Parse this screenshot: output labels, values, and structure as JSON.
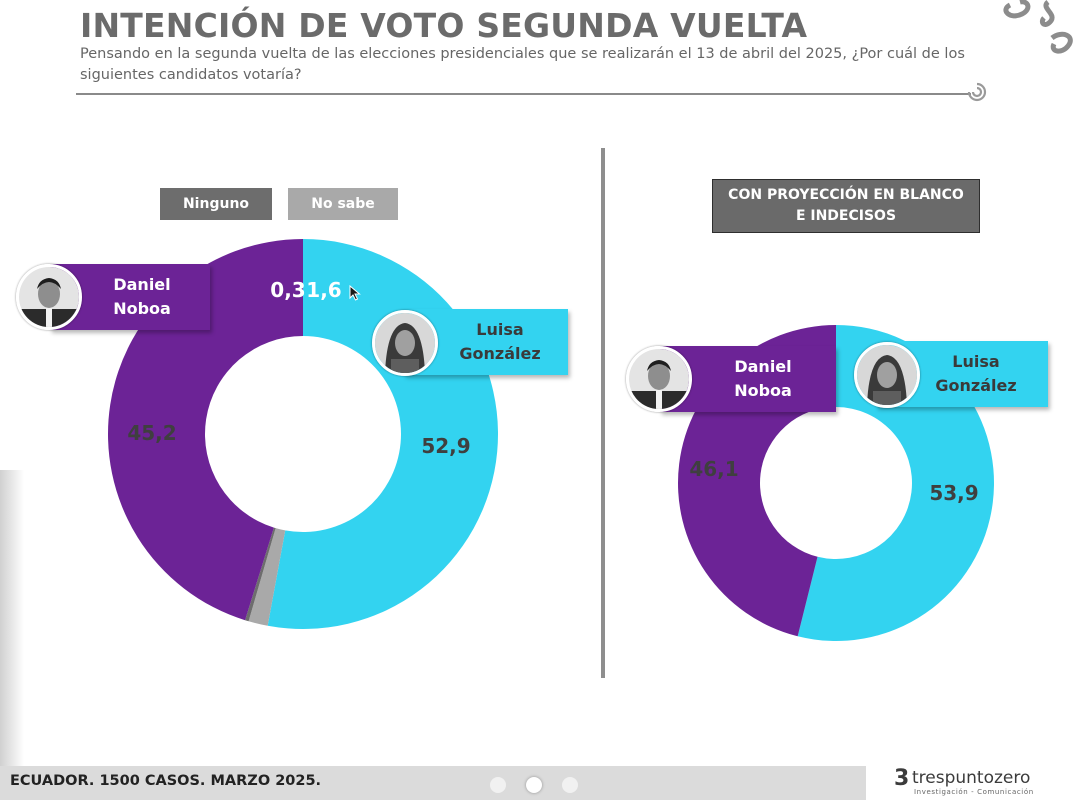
{
  "header": {
    "title": "INTENCIÓN DE VOTO SEGUNDA VUELTA",
    "subtitle": "Pensando en la segunda vuelta de las elecciones presidenciales que se realizarán el 13 de abril del 2025, ¿Por cuál de los siguientes candidatos votaría?"
  },
  "chart_data": [
    {
      "type": "pie",
      "categories": [
        "Luisa González",
        "Daniel Noboa",
        "Ninguno",
        "No sabe"
      ],
      "values": [
        52.9,
        45.2,
        0.3,
        1.6
      ],
      "value_labels": [
        "52,9",
        "45,2",
        "0,3",
        "1,6"
      ],
      "colors": [
        "#33d3f0",
        "#6c2396",
        "#6d6d6d",
        "#a9a9a9"
      ],
      "legend": [
        "Ninguno",
        "No sabe"
      ]
    },
    {
      "type": "pie",
      "title": "CON PROYECCIÓN EN BLANCO E INDECISOS",
      "categories": [
        "Luisa González",
        "Daniel Noboa"
      ],
      "values": [
        53.9,
        46.1
      ],
      "value_labels": [
        "53,9",
        "46,1"
      ],
      "colors": [
        "#33d3f0",
        "#6c2396"
      ]
    }
  ],
  "candidates": {
    "noboa": "Daniel\nNoboa",
    "gonzalez": "Luisa\nGonzález"
  },
  "icons": [
    "noboa-avatar-icon",
    "gonzalez-avatar-icon",
    "brand-swirl-icon",
    "mouse-cursor-icon"
  ],
  "footer": {
    "text": "ECUADOR. 1500 CASOS. MARZO 2025.",
    "logo_name": "trespuntozero",
    "logo_tagline": "Investigación - Comunicación"
  },
  "carousel": {
    "count": 3,
    "active": 2
  }
}
